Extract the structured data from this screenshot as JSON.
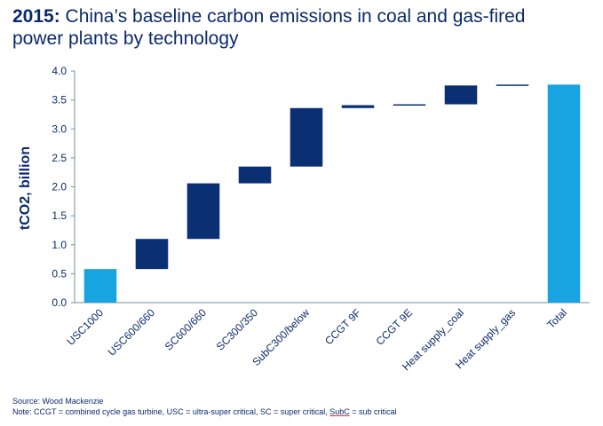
{
  "title": {
    "year": "2015:",
    "text": " China’s baseline carbon emissions in coal and gas-fired power plants by technology"
  },
  "footnotes": {
    "source": "Source: Wood Mackenzie",
    "note_prefix": "Note: CCGT = combined cycle gas turbine, USC = ultra-super critical, SC = super critical, ",
    "note_subc": "SubC",
    "note_suffix": " = sub critical"
  },
  "colors": {
    "total_bar": "#18a4e0",
    "step_bar": "#0b2f73",
    "axis": "#7f8b9c",
    "text": "#0b2a6b"
  },
  "chart_data": {
    "type": "bar",
    "subtype": "waterfall",
    "ylabel": "tCO2, billion",
    "ylim": [
      0,
      4.0
    ],
    "yticks": [
      "0.0",
      "0.5",
      "1.0",
      "1.5",
      "2.0",
      "2.5",
      "3.0",
      "3.5",
      "4.0"
    ],
    "categories": [
      "USC1000",
      "USC600/660",
      "SC600/660",
      "SC300/350",
      "SubC300/below",
      "CCGT 9F",
      "CCGT 9E",
      "Heat supply_coal",
      "Heat supply_gas",
      "Total"
    ],
    "bars": [
      {
        "start": 0.0,
        "end": 0.58,
        "kind": "total"
      },
      {
        "start": 0.58,
        "end": 1.1,
        "kind": "step"
      },
      {
        "start": 1.1,
        "end": 2.06,
        "kind": "step"
      },
      {
        "start": 2.06,
        "end": 2.35,
        "kind": "step"
      },
      {
        "start": 2.35,
        "end": 3.36,
        "kind": "step"
      },
      {
        "start": 3.36,
        "end": 3.41,
        "kind": "step"
      },
      {
        "start": 3.41,
        "end": 3.425,
        "kind": "step"
      },
      {
        "start": 3.425,
        "end": 3.75,
        "kind": "step"
      },
      {
        "start": 3.75,
        "end": 3.765,
        "kind": "step"
      },
      {
        "start": 0.0,
        "end": 3.765,
        "kind": "total"
      }
    ]
  }
}
